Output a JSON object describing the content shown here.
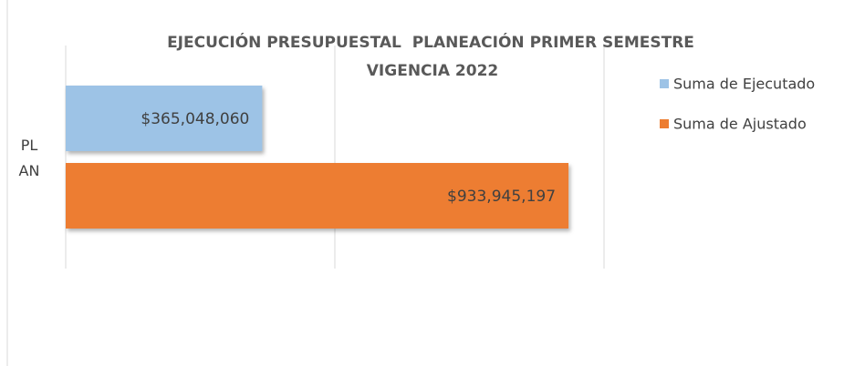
{
  "chart_data": {
    "type": "bar",
    "orientation": "horizontal",
    "title": "EJECUCIÓN PRESUPUESTAL  PLANEACIÓN PRIMER SEMESTRE VIGENCIA 2022",
    "categories": [
      "PLAN"
    ],
    "series": [
      {
        "name": "Suma de Ejecutado",
        "color": "#9dc3e6",
        "values": [
          365048060
        ],
        "value_labels": [
          "$365,048,060"
        ]
      },
      {
        "name": "Suma de Ajustado",
        "color": "#ed7d31",
        "values": [
          933945197
        ],
        "value_labels": [
          "$933,945,197"
        ]
      }
    ],
    "xlim": [
      0,
      1000000000
    ],
    "xticks": [
      0,
      500000000,
      1000000000
    ],
    "grid": true,
    "legend": "right"
  }
}
